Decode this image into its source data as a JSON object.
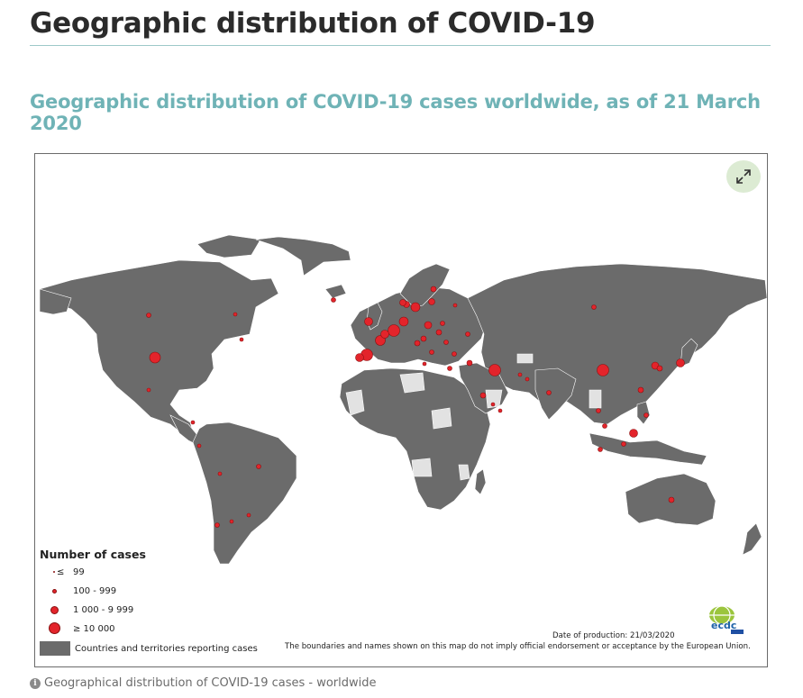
{
  "page": {
    "title": "Geographic distribution of COVID-19",
    "subtitle": "Geographic distribution of COVID-19 cases worldwide, as of 21 March 2020"
  },
  "map": {
    "expand_icon": "expand-arrows-icon",
    "legend": {
      "title": "Number of cases",
      "classes": [
        {
          "symbol": "≤",
          "label": "99"
        },
        {
          "label": "100 - 999"
        },
        {
          "label": "1 000 - 9 999"
        },
        {
          "label": "≥ 10 000"
        }
      ],
      "area_label": "Countries and territories reporting cases"
    },
    "production_date": "Date of production: 21/03/2020",
    "disclaimer": "The boundaries and names shown on this map do not imply official endorsement or acceptance by the European Union.",
    "logo_text": "ecdc",
    "colors": {
      "reporting": "#6b6b6b",
      "not_reporting": "#e2e2e2",
      "case_marker": "#e3242b",
      "ocean": "#ffffff"
    }
  },
  "caption": {
    "icon": "info-icon",
    "text": "Geographical distribution of COVID-19 cases - worldwide"
  }
}
